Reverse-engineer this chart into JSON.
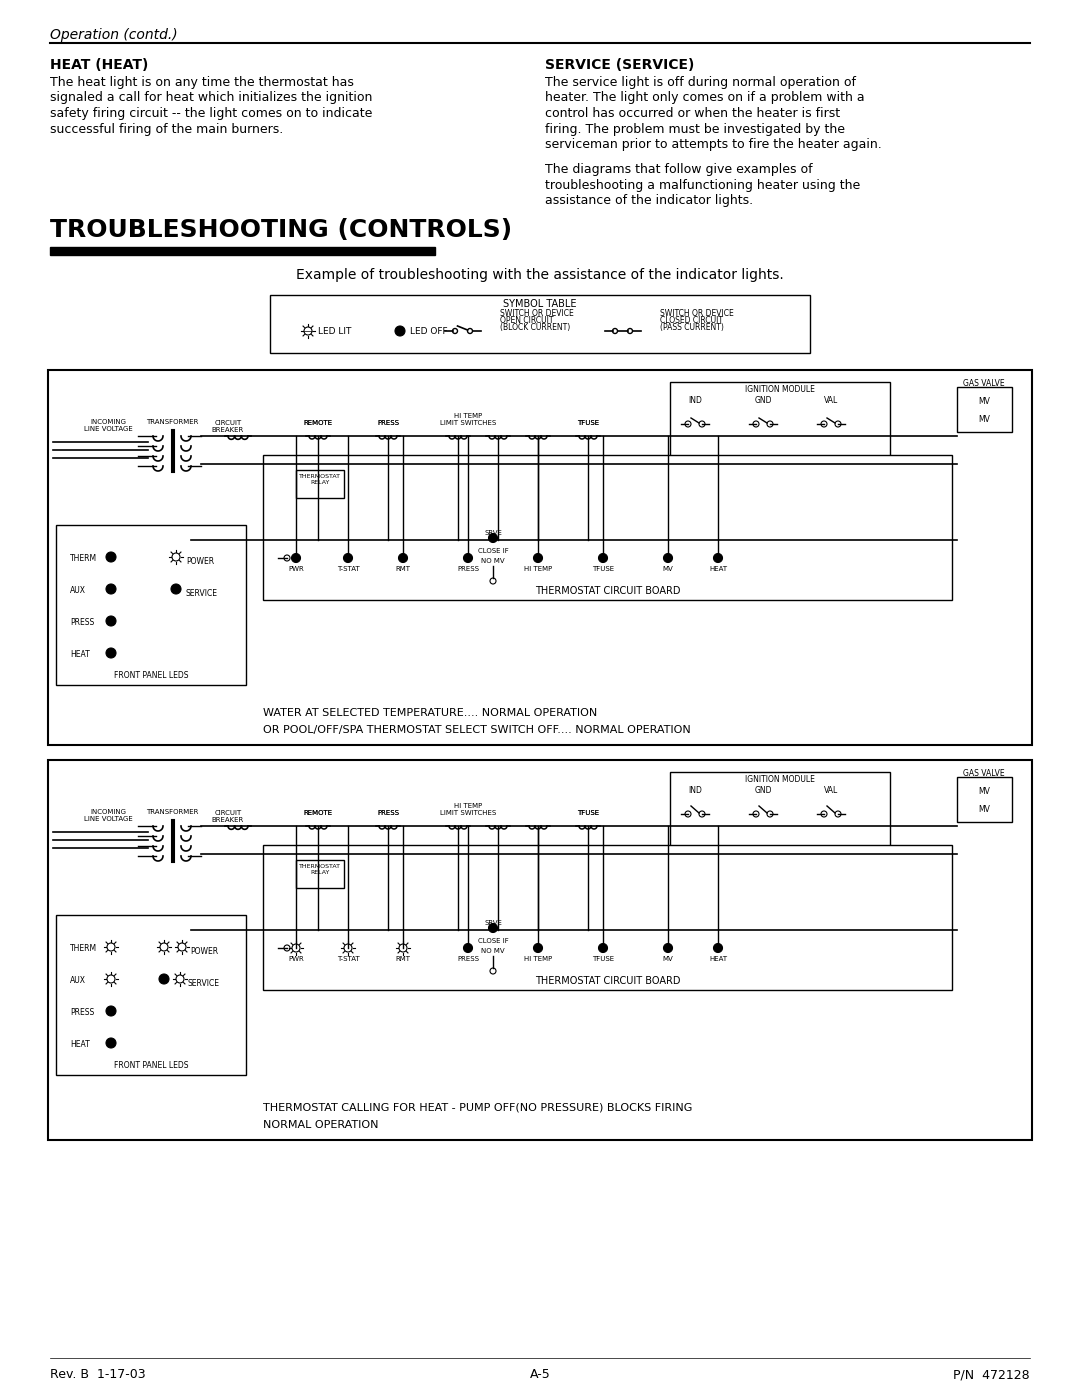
{
  "page_bg": "#ffffff",
  "header_italic": "Operation (contd.)",
  "footer_left": "Rev. B  1-17-03",
  "footer_center": "A-5",
  "footer_right": "P/N  472128",
  "heat_title": "HEAT (HEAT)",
  "heat_body": "The heat light is on any time the thermostat has\nsignaled a call for heat which initializes the ignition\nsafety firing circuit -- the light comes on to indicate\nsuccessful firing of the main burners.",
  "service_title": "SERVICE (SERVICE)",
  "service_body": "The service light is off during normal operation of\nheater. The light only comes on if a problem with a\ncontrol has occurred or when the heater is first\nfiring. The problem must be investigated by the\nserviceman prior to attempts to fire the heater again.",
  "service_body2": "The diagrams that follow give examples of\ntroubleshooting a malfunctioning heater using the\nassistance of the indicator lights.",
  "troubleshooting_title": "TROUBLESHOOTING (CONTROLS)",
  "example_caption": "Example of troubleshooting with the assistance of the indicator lights.",
  "sym_table_title": "SYMBOL TABLE",
  "sym_led_lit": "LED LIT",
  "sym_led_off": "LED OFF",
  "sym_open_line1": "SWITCH OR DEVICE",
  "sym_open_line2": "OPEN CIRCUIT",
  "sym_open_line3": "(BLOCK CURRENT)",
  "sym_closed_line1": "SWITCH OR DEVICE",
  "sym_closed_line2": "CLOSED CIRCUIT",
  "sym_closed_line3": "(PASS CURRENT)",
  "diagram1_caption1": "WATER AT SELECTED TEMPERATURE.... NORMAL OPERATION",
  "diagram1_caption2": "OR POOL/OFF/SPA THERMOSTAT SELECT SWITCH OFF.... NORMAL OPERATION",
  "diagram2_caption1": "THERMOSTAT CALLING FOR HEAT - PUMP OFF(NO PRESSURE) BLOCKS FIRING",
  "diagram2_caption2": "NORMAL OPERATION",
  "label_ignition": "IGNITION MODULE",
  "label_gas_valve": "GAS VALVE",
  "label_ind": "IND",
  "label_gnd": "GND",
  "label_val": "VAL",
  "label_mv1": "MV",
  "label_mv2": "MV",
  "label_incoming": "INCOMING\nLINE VOLTAGE",
  "label_transformer": "TRANSFORMER",
  "label_circuit_breaker": "CIRCUIT\nBREAKER",
  "label_remote": "REMOTE",
  "label_press_top": "PRESS",
  "label_hitemp": "HI TEMP\nLIMIT SWITCHES",
  "label_tfuse": "TFUSE",
  "label_thermostat_relay": "THERMOSTAT\nRELAY",
  "label_pwr": "PWR",
  "label_tstat": "T-STAT",
  "label_rmt": "RMT",
  "label_press": "PRESS",
  "label_hitemp2": "HI TEMP",
  "label_tfuse2": "TFUSE",
  "label_mv_bot": "MV",
  "label_heat": "HEAT",
  "label_srve": "SRVE",
  "label_close_if": "CLOSE IF\nNO MV",
  "label_tcb": "THERMOSTAT CIRCUIT BOARD",
  "label_therm": "THERM",
  "label_aux": "AUX",
  "label_press2": "PRESS",
  "label_heat2": "HEAT",
  "label_front_panel": "FRONT PANEL LEDS",
  "label_power": "POWER",
  "label_service": "SERVICE"
}
